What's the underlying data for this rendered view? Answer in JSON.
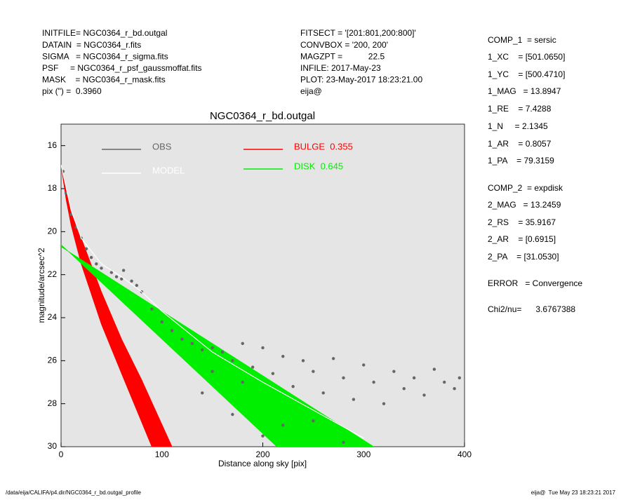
{
  "header": {
    "left": [
      "INITFILE= NGC0364_r_bd.outgal",
      "DATAIN  = NGC0364_r.fits",
      "SIGMA   = NGC0364_r_sigma.fits",
      "PSF     = NGC0364_r_psf_gaussmoffat.fits",
      "MASK    = NGC0364_r_mask.fits",
      "pix (\") =  0.3960"
    ],
    "middle": [
      "FITSECT = '[201:801,200:800]'",
      "CONVBOX = '200, 200'",
      "MAGZPT =           22.5",
      "INFILE: 2017-May-23",
      "PLOT: 23-May-2017 18:23:21.00",
      "eija@"
    ],
    "right": [
      "COMP_1  = sersic",
      "1_XC    = [501.0650]",
      "1_YC    = [500.4710]",
      "1_MAG   = 13.8947",
      "1_RE    = 7.4288",
      "1_N     = 2.1345",
      "1_AR    = 0.8057",
      "1_PA    = 79.3159",
      "COMP_2  = expdisk",
      "2_MAG   = 13.2459",
      "2_RS    = 35.9167",
      "2_AR    = [0.6915]",
      "2_PA    = [31.0530]",
      "ERROR   = Convergence",
      "Chi2/nu=      3.6767388"
    ]
  },
  "footer": {
    "left": "/data/eija/CALIFA/p4.dir/NGC0364_r_bd.outgal_profile",
    "right": "eija@  Tue May 23 18:23:21 2017"
  },
  "chart_data": {
    "type": "scatter",
    "title": "NGC0364_r_bd.outgal",
    "x_label": "Distance along sky [pix]",
    "y_label": "magnitude/arcsec^2",
    "xlim": [
      0,
      400
    ],
    "xticks": [
      0,
      100,
      200,
      300,
      400
    ],
    "ylim": [
      30,
      15
    ],
    "yticks": [
      16,
      18,
      20,
      22,
      24,
      26,
      28,
      30
    ],
    "background": "#e5e5e5",
    "series": [
      {
        "name": "OBS",
        "color": "#666666",
        "kind": "points",
        "x": [
          2,
          5,
          10,
          15,
          20,
          25,
          30,
          35,
          40,
          50,
          55,
          60,
          62,
          70,
          75,
          80,
          90,
          100,
          110,
          120,
          130,
          140,
          150,
          150,
          160,
          170,
          180,
          180,
          190,
          200,
          210,
          220,
          230,
          240,
          250,
          260,
          270,
          280,
          290,
          300,
          310,
          320,
          330,
          340,
          350,
          360,
          370,
          380,
          390,
          395,
          140,
          170,
          200,
          220,
          250,
          280
        ],
        "values": [
          17.2,
          18.2,
          19.2,
          19.8,
          20.3,
          20.8,
          21.2,
          21.5,
          21.7,
          21.9,
          22.1,
          22.2,
          21.8,
          22.3,
          22.5,
          22.8,
          23.6,
          24.2,
          24.6,
          25.0,
          25.2,
          25.5,
          25.4,
          26.5,
          25.6,
          26.0,
          25.2,
          27.0,
          26.3,
          25.4,
          26.6,
          25.8,
          27.2,
          26.0,
          26.5,
          27.5,
          25.9,
          26.8,
          27.8,
          26.2,
          27.0,
          28.0,
          26.5,
          27.3,
          26.8,
          27.6,
          26.4,
          27.0,
          27.3,
          26.8,
          27.5,
          28.5,
          29.5,
          29.0,
          28.8,
          29.8
        ]
      },
      {
        "name": "MODEL",
        "color": "#ffffff",
        "kind": "line",
        "x": [
          0,
          10,
          20,
          40,
          60,
          80,
          100,
          150,
          200,
          250,
          300
        ],
        "values": [
          16.9,
          19.0,
          20.3,
          21.5,
          22.1,
          22.8,
          23.7,
          25.6,
          27.0,
          28.3,
          29.6
        ]
      },
      {
        "name": "BULGE  0.355",
        "color": "#ff0000",
        "kind": "band",
        "edges": [
          {
            "x": [
              0,
              5,
              10,
              20,
              40,
              60,
              90
            ],
            "values": [
              16.9,
              18.5,
              19.7,
              21.5,
              24.3,
              26.6,
              30
            ]
          },
          {
            "x": [
              0,
              10,
              20,
              40,
              60,
              80,
              110
            ],
            "values": [
              16.9,
              19.0,
              20.3,
              22.8,
              25.0,
              26.9,
              30
            ]
          }
        ]
      },
      {
        "name": "DISK  0.645",
        "color": "#00ee00",
        "kind": "band",
        "edges": [
          {
            "x": [
              0,
              214
            ],
            "values": [
              20.6,
              30
            ]
          },
          {
            "x": [
              0,
              310
            ],
            "values": [
              20.7,
              30
            ]
          }
        ]
      }
    ]
  }
}
